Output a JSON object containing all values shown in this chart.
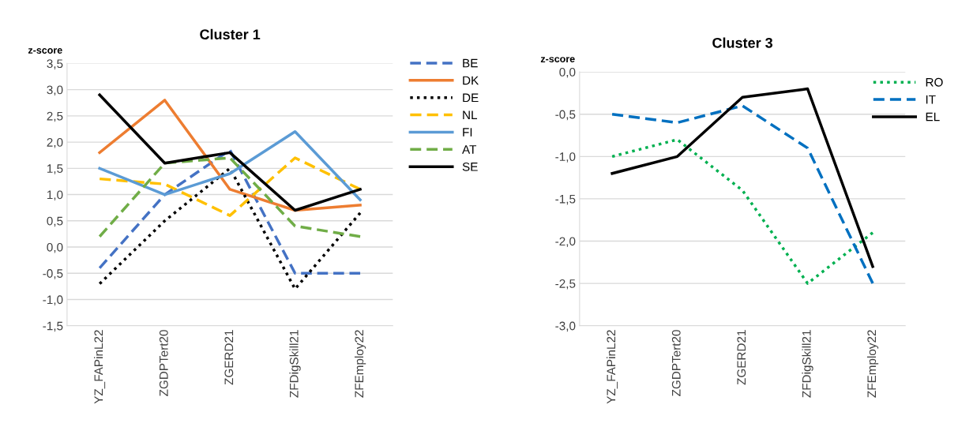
{
  "chart_data": [
    {
      "type": "line",
      "title": "Cluster 1",
      "ylabel": "z-score",
      "categories": [
        "YZ_FAPinL22",
        "ZGDPTert20",
        "ZGERD21",
        "ZFDigSkill21",
        "ZFEmploy22"
      ],
      "ylim": [
        -1.5,
        3.5
      ],
      "yticks": [
        {
          "value": -1.5,
          "label": "-1,5"
        },
        {
          "value": -1.0,
          "label": "-1,0"
        },
        {
          "value": -0.5,
          "label": "-0,5"
        },
        {
          "value": 0.0,
          "label": "0,0"
        },
        {
          "value": 0.5,
          "label": "0,5"
        },
        {
          "value": 1.0,
          "label": "1,0"
        },
        {
          "value": 1.5,
          "label": "1,5"
        },
        {
          "value": 2.0,
          "label": "2,0"
        },
        {
          "value": 2.5,
          "label": "2,5"
        },
        {
          "value": 3.0,
          "label": "3,0"
        },
        {
          "value": 3.5,
          "label": "3,5"
        }
      ],
      "grid": "y",
      "legend": "right",
      "marker": "none",
      "series": [
        {
          "name": "BE",
          "color": "#4472c4",
          "line_style": "dashed",
          "values": [
            -0.4,
            1.0,
            1.85,
            -0.5,
            -0.5
          ]
        },
        {
          "name": "DK",
          "color": "#ed7d31",
          "line_style": "solid",
          "values": [
            1.8,
            2.8,
            1.1,
            0.7,
            0.8
          ]
        },
        {
          "name": "DE",
          "color": "#000000",
          "line_style": "dotted",
          "values": [
            -0.7,
            0.5,
            1.5,
            -0.8,
            0.65
          ]
        },
        {
          "name": "NL",
          "color": "#ffc000",
          "line_style": "dashed",
          "values": [
            1.3,
            1.2,
            0.6,
            1.7,
            1.1
          ]
        },
        {
          "name": "FI",
          "color": "#5b9bd5",
          "line_style": "solid",
          "values": [
            1.5,
            1.0,
            1.4,
            2.2,
            0.9
          ]
        },
        {
          "name": "AT",
          "color": "#70ad47",
          "line_style": "dashed",
          "values": [
            0.2,
            1.6,
            1.7,
            0.4,
            0.2
          ]
        },
        {
          "name": "SE",
          "color": "#000000",
          "line_style": "solid",
          "values": [
            2.9,
            1.6,
            1.8,
            0.7,
            1.1
          ]
        }
      ]
    },
    {
      "type": "line",
      "title": "Cluster 3",
      "ylabel": "z-score",
      "categories": [
        "YZ_FAPinL22",
        "ZGDPTert20",
        "ZGERD21",
        "ZFDigSkill21",
        "ZFEmploy22"
      ],
      "ylim": [
        -3.0,
        0.0
      ],
      "yticks": [
        {
          "value": -3.0,
          "label": "-3,0"
        },
        {
          "value": -2.5,
          "label": "-2,5"
        },
        {
          "value": -2.0,
          "label": "-2,0"
        },
        {
          "value": -1.5,
          "label": "-1,5"
        },
        {
          "value": -1.0,
          "label": "-1,0"
        },
        {
          "value": -0.5,
          "label": "-0,5"
        },
        {
          "value": 0.0,
          "label": "0,0"
        }
      ],
      "grid": "y",
      "legend": "top right",
      "marker": "none",
      "series": [
        {
          "name": "RO",
          "color": "#00b050",
          "line_style": "dotted",
          "values": [
            -1.0,
            -0.8,
            -1.4,
            -2.5,
            -1.9
          ]
        },
        {
          "name": "IT",
          "color": "#0070c0",
          "line_style": "dashed",
          "values": [
            -0.5,
            -0.6,
            -0.4,
            -0.9,
            -2.5
          ]
        },
        {
          "name": "EL",
          "color": "#000000",
          "line_style": "solid",
          "values": [
            -1.2,
            -1.0,
            -0.3,
            -0.2,
            -2.3
          ]
        }
      ]
    }
  ]
}
